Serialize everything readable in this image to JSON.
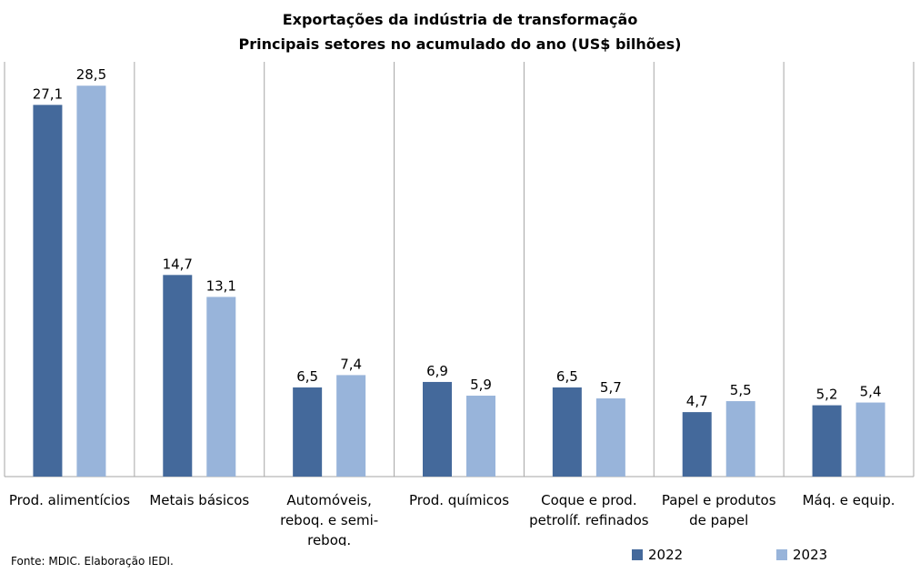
{
  "chart_data": {
    "type": "bar",
    "title": "Exportações da indústria de transformação",
    "subtitle": "Principais setores no acumulado do ano (US$ bilhões)",
    "categories": [
      [
        "Prod. alimentícios"
      ],
      [
        "Metais básicos"
      ],
      [
        "Automóveis,",
        "reboq. e semi-",
        "reboq."
      ],
      [
        "Prod. químicos"
      ],
      [
        "Coque e prod.",
        "petrolíf. refinados"
      ],
      [
        "Papel e produtos",
        "de papel"
      ],
      [
        "Máq. e equip."
      ]
    ],
    "series": [
      {
        "name": "2022",
        "color": "#44699B",
        "values": [
          27.1,
          14.7,
          6.5,
          6.9,
          6.5,
          4.7,
          5.2
        ],
        "labels": [
          "27,1",
          "14,7",
          "6,5",
          "6,9",
          "6,5",
          "4,7",
          "5,2"
        ]
      },
      {
        "name": "2023",
        "color": "#98B4DA",
        "values": [
          28.5,
          13.1,
          7.4,
          5.9,
          5.7,
          5.5,
          5.4
        ],
        "labels": [
          "28,5",
          "13,1",
          "7,4",
          "5,9",
          "5,7",
          "5,5",
          "5,4"
        ]
      }
    ],
    "ylim": [
      0,
      30
    ],
    "grid": "vertical separators",
    "legend": "bottom-right"
  },
  "source": "Fonte: MDIC. Elaboração IEDI."
}
